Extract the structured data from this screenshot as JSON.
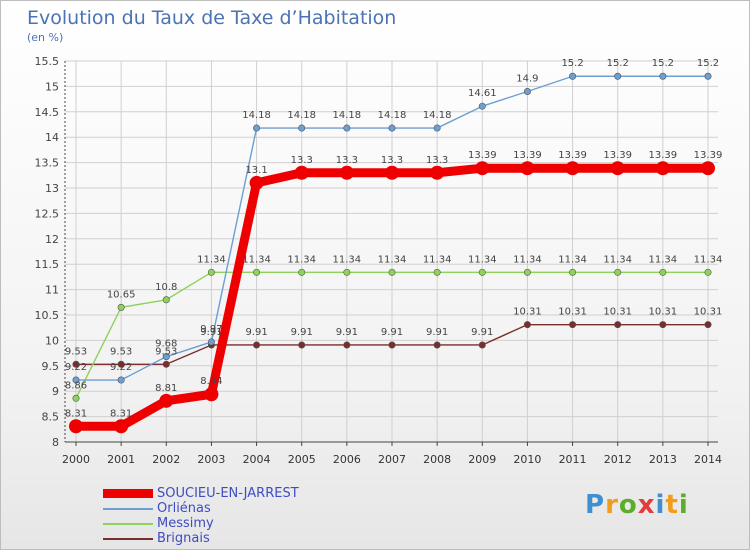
{
  "header": {
    "title": "Evolution du Taux de Taxe d’Habitation",
    "subtitle": "(en %)"
  },
  "logo": {
    "text": "Proxiti",
    "letter_colors": [
      "#3f8fd2",
      "#f39c19",
      "#5cae2a",
      "#e23d3d",
      "#3f8fd2",
      "#f39c19",
      "#5cae2a"
    ]
  },
  "chart_data": {
    "type": "line",
    "title": "Evolution du Taux de Taxe d’Habitation",
    "ylabel": "(en %)",
    "xlabel": "",
    "x": [
      "2000",
      "2001",
      "2002",
      "2003",
      "2004",
      "2005",
      "2006",
      "2007",
      "2008",
      "2009",
      "2010",
      "2011",
      "2012",
      "2013",
      "2014"
    ],
    "ylim": [
      8,
      15.5
    ],
    "yticks": [
      "8",
      "8.5",
      "9",
      "9.5",
      "10",
      "10.5",
      "11",
      "11.5",
      "12",
      "12.5",
      "13",
      "13.5",
      "14",
      "14.5",
      "15",
      "15.5"
    ],
    "grid": true,
    "legend_position": "bottom-left",
    "series": [
      {
        "name": "SOUCIEU-EN-JARREST",
        "color": "#ee0000",
        "emphasis": true,
        "values": [
          8.31,
          8.31,
          8.81,
          8.94,
          13.1,
          13.3,
          13.3,
          13.3,
          13.3,
          13.39,
          13.39,
          13.39,
          13.39,
          13.39,
          13.39
        ],
        "labels": [
          "8.31",
          "8.31",
          "8.81",
          "8.94",
          "13.1",
          "13.3",
          "13.3",
          "13.3",
          "13.3",
          "13.39",
          "13.39",
          "13.39",
          "13.39",
          "13.39",
          "13.39"
        ]
      },
      {
        "name": "Orliénas",
        "color": "#6c9fd2",
        "values": [
          9.22,
          9.22,
          9.68,
          9.97,
          14.18,
          14.18,
          14.18,
          14.18,
          14.18,
          14.61,
          14.9,
          15.2,
          15.2,
          15.2,
          15.2
        ],
        "labels": [
          "9.22",
          "9.22",
          "9.68",
          "9.97",
          "14.18",
          "14.18",
          "14.18",
          "14.18",
          "14.18",
          "14.61",
          "14.9",
          "15.2",
          "15.2",
          "15.2",
          "15.2"
        ]
      },
      {
        "name": "Messimy",
        "color": "#8fd25a",
        "values": [
          8.86,
          10.65,
          10.8,
          11.34,
          11.34,
          11.34,
          11.34,
          11.34,
          11.34,
          11.34,
          11.34,
          11.34,
          11.34,
          11.34,
          11.34
        ],
        "labels": [
          "8.86",
          "10.65",
          "10.8",
          "11.34",
          "11.34",
          "11.34",
          "11.34",
          "11.34",
          "11.34",
          "11.34",
          "11.34",
          "11.34",
          "11.34",
          "11.34",
          "11.34"
        ]
      },
      {
        "name": "Brignais",
        "color": "#7a2d2d",
        "values": [
          9.53,
          9.53,
          9.53,
          9.91,
          9.91,
          9.91,
          9.91,
          9.91,
          9.91,
          9.91,
          10.31,
          10.31,
          10.31,
          10.31,
          10.31
        ],
        "labels": [
          "9.53",
          "9.53",
          "9.53",
          "9.91",
          "9.91",
          "9.91",
          "9.91",
          "9.91",
          "9.91",
          "9.91",
          "10.31",
          "10.31",
          "10.31",
          "10.31",
          "10.31"
        ]
      }
    ]
  }
}
